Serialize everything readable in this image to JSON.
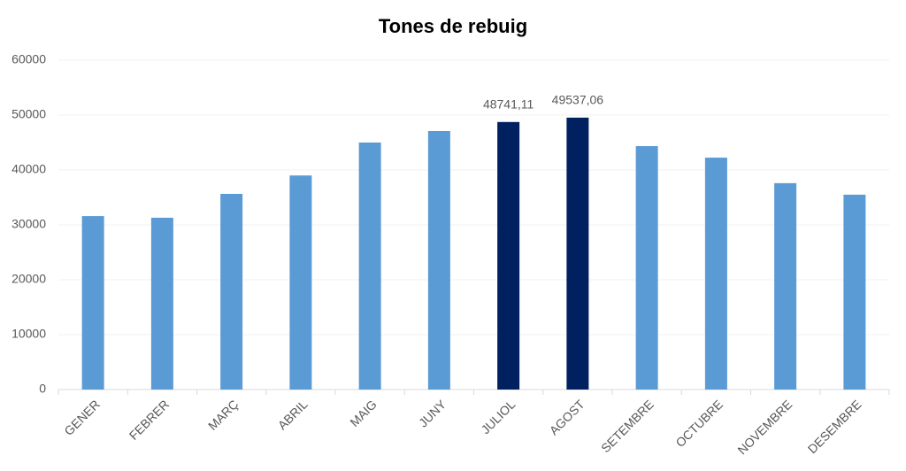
{
  "chart_data": {
    "type": "bar",
    "title": "Tones de rebuig",
    "categories": [
      "GENER",
      "FEBRER",
      "MARÇ",
      "ABRIL",
      "MAIG",
      "JUNY",
      "JULIOL",
      "AGOST",
      "SETEMBRE",
      "OCTUBRE",
      "NOVEMBRE",
      "DESEMBRE"
    ],
    "values": [
      31600,
      31300,
      35650,
      39000,
      45000,
      47100,
      48741.11,
      49537.06,
      44350,
      42250,
      37600,
      35500
    ],
    "value_labels": [
      null,
      null,
      null,
      null,
      null,
      null,
      "48741,11",
      "49537,06",
      null,
      null,
      null,
      null
    ],
    "colors": [
      "#5b9bd5",
      "#5b9bd5",
      "#5b9bd5",
      "#5b9bd5",
      "#5b9bd5",
      "#5b9bd5",
      "#002060",
      "#002060",
      "#5b9bd5",
      "#5b9bd5",
      "#5b9bd5",
      "#5b9bd5"
    ],
    "ylim": [
      0,
      60000
    ],
    "yticks": [
      0,
      10000,
      20000,
      30000,
      40000,
      50000,
      60000
    ],
    "grid": true
  }
}
